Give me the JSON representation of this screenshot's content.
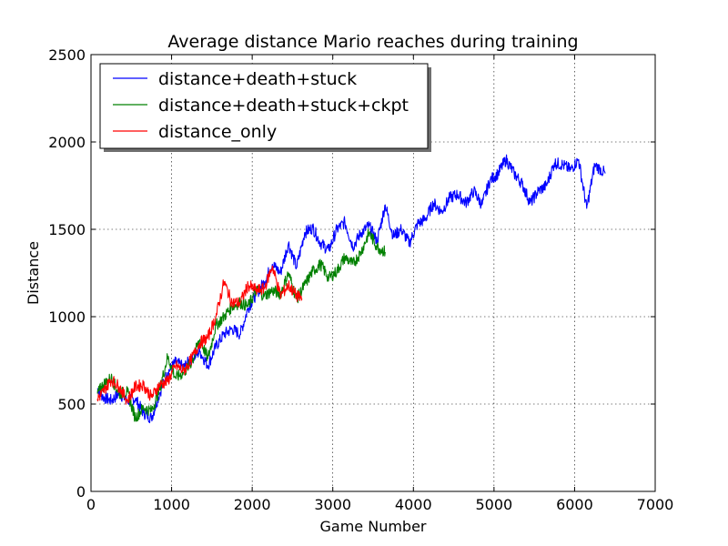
{
  "chart_data": {
    "type": "line",
    "title": "Average distance Mario reaches during training",
    "xlabel": "Game Number",
    "ylabel": "Distance",
    "xlim": [
      0,
      7000
    ],
    "ylim": [
      0,
      2500
    ],
    "xticks": [
      0,
      1000,
      2000,
      3000,
      4000,
      5000,
      6000,
      7000
    ],
    "yticks": [
      0,
      500,
      1000,
      1500,
      2000,
      2500
    ],
    "xtick_labels": [
      "0",
      "1000",
      "2000",
      "3000",
      "4000",
      "5000",
      "6000",
      "7000"
    ],
    "ytick_labels": [
      "0",
      "500",
      "1000",
      "1500",
      "2000",
      "2500"
    ],
    "grid": true,
    "legend_position": "top-left",
    "series": [
      {
        "name": "distance+death+stuck",
        "color": "#0000ff",
        "x": [
          80,
          150,
          250,
          350,
          450,
          550,
          650,
          750,
          850,
          950,
          1050,
          1150,
          1250,
          1350,
          1450,
          1550,
          1650,
          1750,
          1850,
          1950,
          2050,
          2150,
          2250,
          2350,
          2450,
          2550,
          2650,
          2750,
          2850,
          2950,
          3050,
          3150,
          3250,
          3350,
          3450,
          3550,
          3650,
          3750,
          3850,
          3950,
          4050,
          4150,
          4250,
          4350,
          4450,
          4550,
          4650,
          4750,
          4850,
          4950,
          5050,
          5150,
          5250,
          5350,
          5450,
          5550,
          5650,
          5750,
          5850,
          5950,
          6050,
          6150,
          6250,
          6380
        ],
        "y": [
          590,
          540,
          520,
          560,
          520,
          530,
          450,
          420,
          560,
          680,
          740,
          710,
          760,
          800,
          720,
          830,
          900,
          930,
          900,
          1050,
          1130,
          1200,
          1300,
          1250,
          1420,
          1280,
          1480,
          1510,
          1420,
          1380,
          1500,
          1540,
          1400,
          1480,
          1520,
          1430,
          1640,
          1460,
          1500,
          1420,
          1530,
          1560,
          1650,
          1600,
          1680,
          1700,
          1650,
          1720,
          1640,
          1780,
          1820,
          1900,
          1820,
          1760,
          1650,
          1720,
          1750,
          1880,
          1870,
          1840,
          1900,
          1620,
          1870,
          1820
        ]
      },
      {
        "name": "distance+death+stuck+ckpt",
        "color": "#008000",
        "x": [
          80,
          150,
          250,
          350,
          450,
          550,
          650,
          750,
          850,
          950,
          1050,
          1150,
          1250,
          1350,
          1450,
          1550,
          1650,
          1750,
          1850,
          1950,
          2050,
          2150,
          2250,
          2350,
          2450,
          2550,
          2650,
          2750,
          2850,
          2950,
          3050,
          3150,
          3250,
          3350,
          3450,
          3550,
          3650
        ],
        "y": [
          560,
          610,
          650,
          560,
          570,
          420,
          480,
          460,
          580,
          770,
          650,
          680,
          740,
          870,
          760,
          950,
          1000,
          1060,
          1080,
          1060,
          1150,
          1120,
          1150,
          1130,
          1250,
          1100,
          1180,
          1260,
          1300,
          1220,
          1260,
          1340,
          1300,
          1370,
          1480,
          1400,
          1370
        ]
      },
      {
        "name": "distance_only",
        "color": "#ff0000",
        "x": [
          80,
          150,
          250,
          350,
          450,
          550,
          650,
          750,
          850,
          950,
          1050,
          1150,
          1250,
          1350,
          1450,
          1550,
          1650,
          1750,
          1850,
          1950,
          2050,
          2150,
          2250,
          2350,
          2450,
          2550,
          2620
        ],
        "y": [
          530,
          570,
          640,
          600,
          520,
          600,
          610,
          540,
          610,
          630,
          720,
          690,
          760,
          850,
          880,
          1000,
          1200,
          1080,
          1080,
          1180,
          1150,
          1160,
          1290,
          1120,
          1180,
          1120,
          1100
        ]
      }
    ]
  }
}
